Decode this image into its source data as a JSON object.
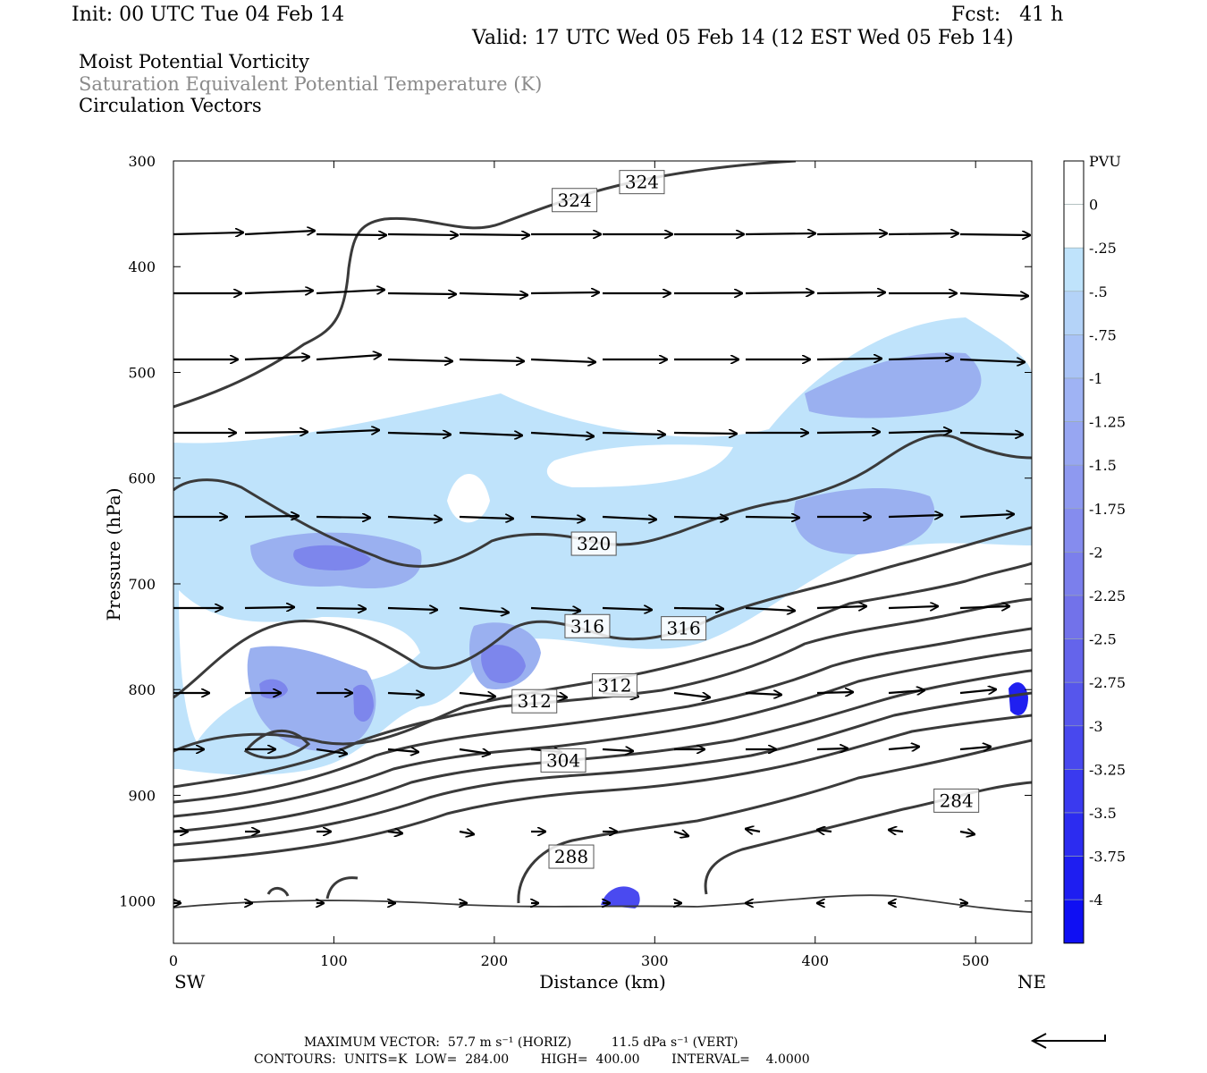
{
  "header": {
    "init": "Init: 00 UTC Tue 04 Feb 14",
    "fcst": "Fcst:   41 h",
    "valid": "Valid: 17 UTC Wed 05 Feb 14 (12 EST Wed 05 Feb 14)"
  },
  "fields": {
    "line1": "Moist Potential Vorticity",
    "line2": "Saturation Equivalent Potential Temperature (K)",
    "line3": "Circulation Vectors"
  },
  "footer": {
    "line1": "MAXIMUM VECTOR:  57.7 m s⁻¹ (HORIZ)          11.5 dPa s⁻¹ (VERT)",
    "line2": "CONTOURS:  UNITS=K  LOW=  284.00        HIGH=  400.00        INTERVAL=    4.0000"
  },
  "colors": {
    "pv_light": "#bfe3fb",
    "pv_mid": "#9ab0f0",
    "pv_dark": "#7d86ec",
    "pv_deep": "#2020f0",
    "contour": "#3a3a3a",
    "vector": "#000000"
  },
  "chart_data": {
    "type": "contour",
    "xlabel": "Distance (km)",
    "ylabel": "Pressure (hPa)",
    "xlim": [
      0,
      535
    ],
    "ylim": [
      1040,
      300
    ],
    "x_ticks": [
      0,
      100,
      200,
      300,
      400,
      500
    ],
    "y_ticks": [
      300,
      400,
      500,
      600,
      700,
      800,
      900,
      1000
    ],
    "endpoints": {
      "left": "SW",
      "right": "NE"
    },
    "colorbar": {
      "units": "PVU",
      "levels": [
        "0",
        "-.25",
        "-.5",
        "-.75",
        "-1",
        "-1.25",
        "-1.5",
        "-1.75",
        "-2",
        "-2.25",
        "-2.5",
        "-2.75",
        "-3",
        "-3.25",
        "-3.5",
        "-3.75",
        "-4"
      ]
    },
    "contour_labels": [
      {
        "text": "324",
        "x": 250,
        "p": 337
      },
      {
        "text": "324",
        "x": 292,
        "p": 320
      },
      {
        "text": "320",
        "x": 262,
        "p": 662
      },
      {
        "text": "316",
        "x": 258,
        "p": 740
      },
      {
        "text": "316",
        "x": 318,
        "p": 742
      },
      {
        "text": "312",
        "x": 225,
        "p": 811
      },
      {
        "text": "312",
        "x": 275,
        "p": 796
      },
      {
        "text": "304",
        "x": 243,
        "p": 867
      },
      {
        "text": "288",
        "x": 248,
        "p": 958
      },
      {
        "text": "284",
        "x": 488,
        "p": 905
      }
    ]
  }
}
